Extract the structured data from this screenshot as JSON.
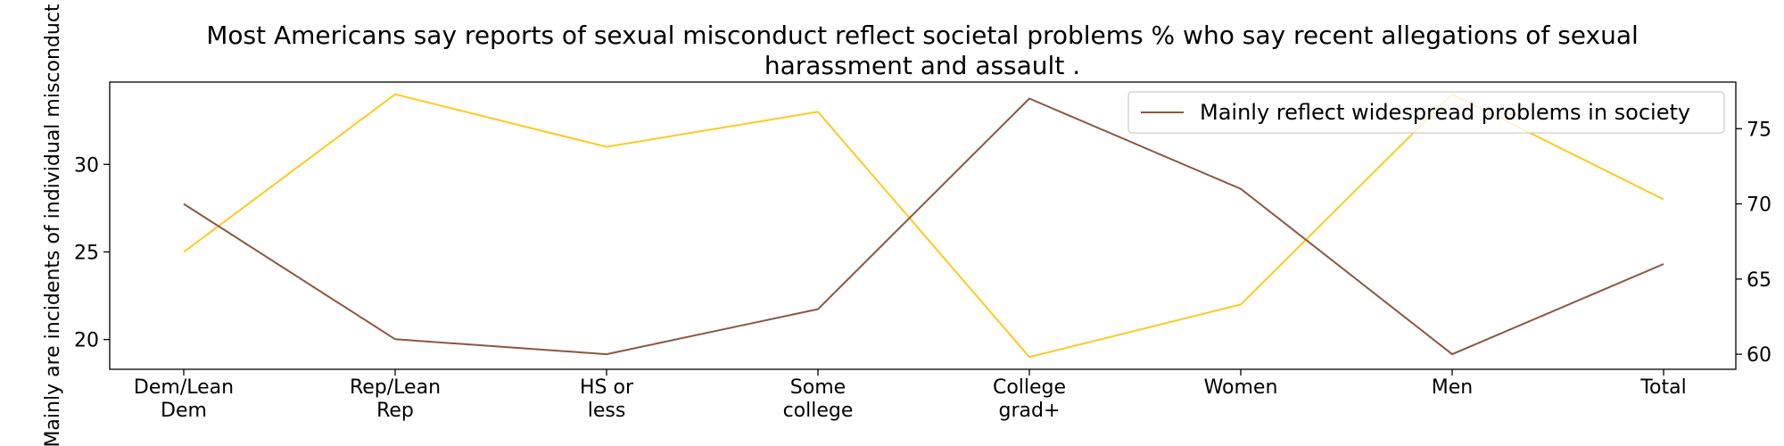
{
  "chart_data": {
    "type": "line",
    "title_lines": [
      "Most Americans say reports of sexual misconduct reflect societal problems % who say recent allegations of sexual",
      "harassment and assault ."
    ],
    "categories": [
      [
        "Dem/Lean",
        "Dem"
      ],
      [
        "Rep/Lean",
        "Rep"
      ],
      [
        "HS or",
        "less"
      ],
      [
        "Some",
        "college"
      ],
      [
        "College",
        "grad+"
      ],
      [
        "Women"
      ],
      [
        "Men"
      ],
      [
        "Total"
      ]
    ],
    "left_axis": {
      "label": "Mainly are incidents of individual misconduct",
      "ylim": [
        18.3,
        34.7
      ],
      "ticks": [
        20,
        25,
        30
      ]
    },
    "right_axis": {
      "ylim": [
        59.0,
        78.1
      ],
      "ticks": [
        60,
        65,
        70,
        75
      ]
    },
    "series": [
      {
        "axis": "left",
        "color": "#FFC91F",
        "values": [
          25,
          34,
          31,
          33,
          19,
          22,
          34,
          28
        ]
      },
      {
        "axis": "right",
        "name": "Mainly reflect widespread problems in society",
        "color": "#8C5640",
        "values": [
          70,
          61,
          60,
          63,
          77,
          71,
          60,
          66
        ]
      }
    ],
    "legend": {
      "placement": "top-right",
      "entries": [
        "Mainly reflect widespread problems in society"
      ]
    },
    "grid": false
  }
}
